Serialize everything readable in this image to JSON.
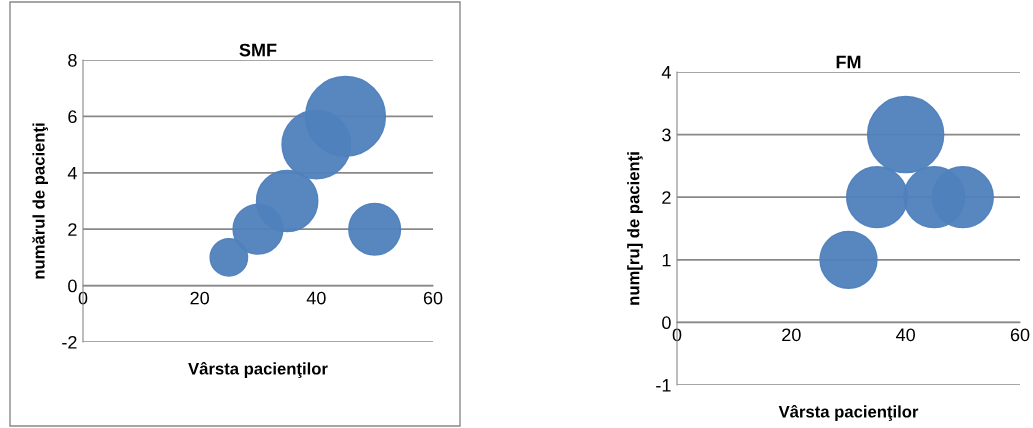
{
  "chart_data": [
    {
      "type": "bubble",
      "title": "SMF",
      "xlabel": "Vârsta pacienţilor",
      "ylabel": "numărul de pacienţi",
      "color": "#4f81bd",
      "grid": "y",
      "legend": false,
      "x": [
        25,
        30,
        35,
        40,
        45,
        50
      ],
      "values": [
        1,
        2,
        3,
        5,
        6,
        2
      ],
      "sizes": [
        0.22,
        0.39,
        0.59,
        0.74,
        1,
        0.42
      ],
      "xlim": [
        0,
        60
      ],
      "xticks": [
        0,
        20,
        40,
        60
      ],
      "ylim": [
        -2,
        8
      ],
      "yticks": [
        -2,
        0,
        2,
        4,
        6,
        8
      ]
    },
    {
      "type": "bubble",
      "title": "FM",
      "xlabel": "Vârsta pacienţilor",
      "ylabel": "num[ru] de pacienţi",
      "color": "#4f81bd",
      "grid": "y",
      "legend": false,
      "x": [
        30,
        35,
        40,
        45,
        50
      ],
      "values": [
        1,
        2,
        3,
        2,
        2
      ],
      "sizes": [
        0.56,
        0.64,
        1,
        0.64,
        0.64
      ],
      "xlim": [
        0,
        60
      ],
      "xticks": [
        0,
        20,
        40,
        60
      ],
      "ylim": [
        -1,
        4
      ],
      "yticks": [
        -1,
        0,
        1,
        2,
        3,
        4
      ]
    }
  ]
}
